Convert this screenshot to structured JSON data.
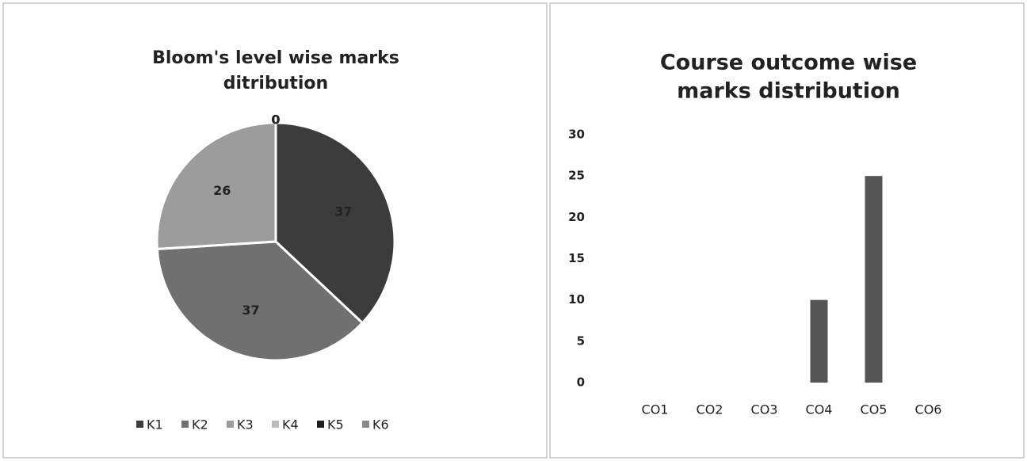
{
  "chart_data": [
    {
      "type": "pie",
      "title": [
        "Bloom's level wise marks",
        "ditribution"
      ],
      "categories": [
        "K1",
        "K2",
        "K3",
        "K4",
        "K5",
        "K6"
      ],
      "values": [
        37,
        37,
        26,
        0,
        0,
        0
      ],
      "colors": [
        "#3c3c3c",
        "#707070",
        "#9c9c9c",
        "#bdbdbd",
        "#1e1e1e",
        "#8a8a8a"
      ],
      "legend": "bottom"
    },
    {
      "type": "bar",
      "title": [
        "Course outcome wise",
        "marks distribution"
      ],
      "categories": [
        "CO1",
        "CO2",
        "CO3",
        "CO4",
        "CO5",
        "CO6"
      ],
      "values": [
        0,
        0,
        0,
        10,
        25,
        0
      ],
      "color": "#555555",
      "ylim": [
        0,
        30
      ],
      "yticks": [
        0,
        5,
        10,
        15,
        20,
        25,
        30
      ],
      "grid": false
    }
  ]
}
